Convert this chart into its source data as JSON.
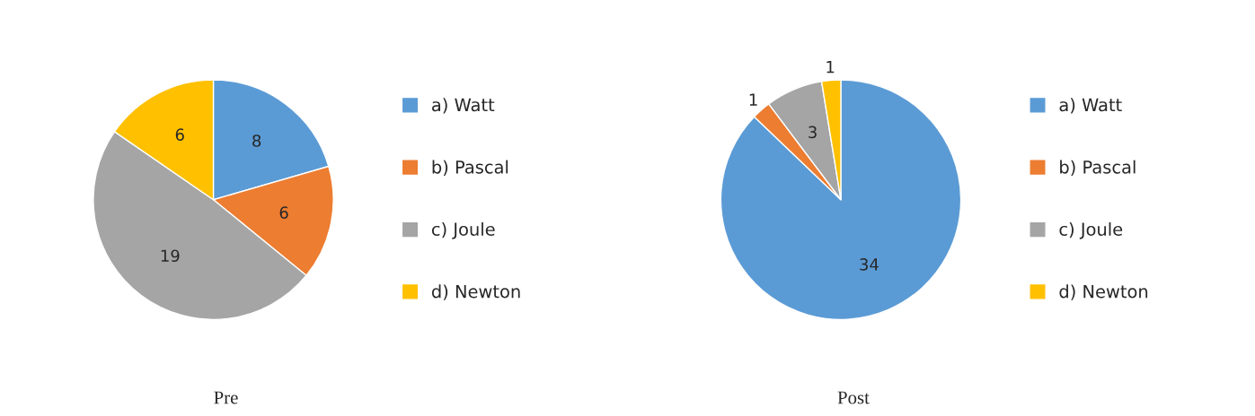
{
  "chart_data": [
    {
      "type": "pie",
      "title": "Pre",
      "categories": [
        "a) Watt",
        "b) Pascal",
        "c) Joule",
        "d) Newton"
      ],
      "values": [
        8,
        6,
        19,
        6
      ],
      "colors": [
        "#5b9bd5",
        "#ed7d31",
        "#a5a5a5",
        "#ffc000"
      ],
      "data_labels": true,
      "legend": "right"
    },
    {
      "type": "pie",
      "title": "Post",
      "categories": [
        "a) Watt",
        "b) Pascal",
        "c) Joule",
        "d) Newton"
      ],
      "values": [
        34,
        1,
        3,
        1
      ],
      "colors": [
        "#5b9bd5",
        "#ed7d31",
        "#a5a5a5",
        "#ffc000"
      ],
      "data_labels": true,
      "legend": "right"
    }
  ]
}
